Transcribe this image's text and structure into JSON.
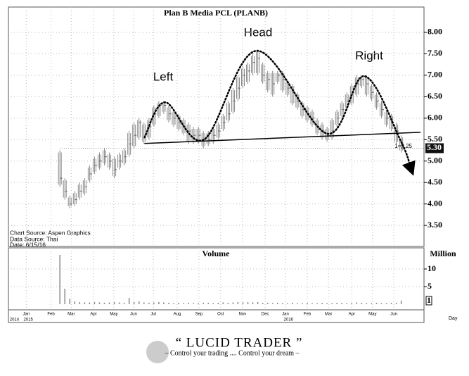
{
  "chart_data": {
    "type": "ohlc",
    "title": "Plan B Media PCL (PLANB)",
    "volume_title": "Volume",
    "volume_unit": "Million",
    "annotations": [
      "Left",
      "Head",
      "Right"
    ],
    "notes": [
      "Chart Source: Aspen Graphics",
      "Data Source: Thai",
      "Date: 6/15/16"
    ],
    "price_note": "1=5.25",
    "x_unit": "Day",
    "color": "#8a8a8a",
    "x": [
      9,
      10,
      11,
      12,
      13,
      14,
      15,
      16,
      17,
      18,
      19,
      20,
      21,
      22,
      23,
      24,
      25,
      26,
      27,
      28,
      29,
      30,
      31,
      32,
      33,
      34,
      35,
      36,
      37,
      38,
      39,
      40,
      41,
      42,
      43,
      44,
      45,
      46,
      47,
      48,
      49,
      50,
      51,
      52,
      53,
      54,
      55,
      56,
      57,
      58,
      59,
      60,
      61,
      62,
      63,
      64,
      65,
      66,
      67,
      68,
      69,
      70,
      71,
      72,
      73,
      74,
      75,
      76,
      77,
      78
    ],
    "high": [
      5.25,
      4.6,
      4.2,
      4.3,
      4.5,
      4.6,
      4.9,
      5.1,
      5.2,
      5.3,
      5.2,
      5.1,
      5.2,
      5.3,
      5.7,
      5.9,
      6.0,
      5.9,
      6.0,
      6.3,
      6.4,
      6.4,
      6.3,
      6.2,
      6.1,
      6.0,
      5.9,
      5.8,
      5.8,
      5.7,
      5.7,
      5.8,
      5.9,
      6.1,
      6.4,
      6.7,
      7.0,
      7.2,
      7.3,
      7.5,
      7.6,
      7.3,
      7.1,
      7.1,
      7.1,
      7.1,
      6.9,
      6.8,
      6.6,
      6.4,
      6.3,
      6.2,
      6.0,
      5.9,
      5.8,
      6.0,
      6.2,
      6.4,
      6.6,
      6.8,
      7.0,
      7.0,
      7.0,
      6.8,
      6.6,
      6.4,
      6.2,
      6.1,
      5.9,
      5.6
    ],
    "low": [
      4.4,
      4.1,
      3.9,
      3.95,
      4.1,
      4.2,
      4.5,
      4.7,
      4.8,
      4.9,
      4.8,
      4.6,
      4.8,
      4.9,
      5.1,
      5.3,
      5.5,
      5.4,
      5.5,
      5.8,
      6.0,
      6.1,
      5.9,
      5.8,
      5.7,
      5.6,
      5.4,
      5.4,
      5.4,
      5.3,
      5.35,
      5.4,
      5.5,
      5.7,
      5.9,
      6.1,
      6.4,
      6.7,
      6.8,
      7.0,
      7.0,
      6.8,
      6.6,
      6.5,
      6.8,
      6.6,
      6.5,
      6.3,
      6.2,
      6.0,
      5.9,
      5.8,
      5.6,
      5.5,
      5.45,
      5.5,
      5.8,
      6.0,
      6.2,
      6.3,
      6.5,
      6.7,
      6.5,
      6.4,
      6.2,
      6.0,
      5.8,
      5.7,
      5.4,
      5.2
    ],
    "close": [
      4.6,
      4.3,
      4.0,
      4.1,
      4.3,
      4.4,
      4.7,
      4.9,
      5.0,
      5.1,
      5.0,
      4.8,
      5.0,
      5.1,
      5.4,
      5.6,
      5.9,
      5.6,
      5.8,
      6.1,
      6.3,
      6.3,
      6.1,
      6.0,
      5.9,
      5.8,
      5.7,
      5.6,
      5.6,
      5.5,
      5.5,
      5.6,
      5.7,
      5.9,
      6.1,
      6.4,
      6.7,
      7.0,
      7.1,
      7.3,
      7.4,
      7.0,
      6.9,
      6.8,
      7.0,
      6.9,
      6.7,
      6.6,
      6.4,
      6.2,
      6.1,
      6.0,
      5.8,
      5.7,
      5.6,
      5.7,
      6.0,
      6.2,
      6.4,
      6.6,
      6.8,
      6.9,
      6.8,
      6.6,
      6.4,
      6.2,
      6.0,
      5.9,
      5.7,
      5.3
    ],
    "volume": [
      14,
      4.4,
      1.5,
      0.8,
      0.6,
      0.5,
      0.5,
      0.6,
      0.5,
      0.4,
      0.5,
      0.6,
      0.5,
      0.4,
      1.8,
      0.6,
      0.8,
      0.5,
      0.4,
      0.5,
      0.6,
      0.5,
      0.4,
      0.3,
      0.4,
      0.3,
      0.4,
      0.3,
      0.3,
      0.4,
      0.4,
      0.3,
      0.4,
      0.5,
      0.4,
      0.5,
      0.6,
      0.5,
      0.6,
      0.5,
      0.6,
      0.4,
      0.4,
      0.3,
      0.4,
      0.3,
      0.3,
      0.4,
      0.3,
      0.3,
      0.4,
      0.3,
      0.3,
      0.4,
      0.3,
      0.3,
      0.4,
      0.4,
      0.3,
      0.4,
      0.5,
      0.4,
      0.3,
      0.3,
      0.4,
      0.3,
      0.3,
      0.4,
      0.4,
      1
    ],
    "last_price": {
      "value": 5.3,
      "label": "5.30"
    },
    "last_volume": 1,
    "neckline": {
      "x": [
        26.1,
        81.9
      ],
      "y": [
        5.41,
        5.67
      ]
    },
    "pattern_path": {
      "x": [
        26.1,
        30.3,
        38.1,
        48.8,
        63.0,
        70.5,
        77.9,
        80.0
      ],
      "y": [
        5.55,
        6.37,
        5.5,
        7.57,
        5.64,
        6.98,
        5.47,
        4.81
      ]
    },
    "xlim": [
      -1.4,
      82.6
    ],
    "ylim": [
      3.01,
      8.59
    ],
    "yticks": [
      {
        "value": 3.5,
        "label": "3.50"
      },
      {
        "value": 4,
        "label": "4.00"
      },
      {
        "value": 4.5,
        "label": "4.50"
      },
      {
        "value": 5,
        "label": "5.00"
      },
      {
        "value": 5.5,
        "label": "5.50"
      },
      {
        "value": 6,
        "label": "6.00"
      },
      {
        "value": 6.5,
        "label": "6.50"
      },
      {
        "value": 7,
        "label": "7.00"
      },
      {
        "value": 7.5,
        "label": "7.50"
      },
      {
        "value": 8,
        "label": "8.00"
      }
    ],
    "volume_ylim": [
      -1.6,
      16
    ],
    "volume_yticks": [
      5,
      10
    ],
    "xticks": [
      {
        "value": 2.2,
        "label": "Jan"
      },
      {
        "value": 7.2,
        "label": "Feb"
      },
      {
        "value": 11.3,
        "label": "Mar"
      },
      {
        "value": 15.8,
        "label": "Apr"
      },
      {
        "value": 19.9,
        "label": "May"
      },
      {
        "value": 23.9,
        "label": "Jun"
      },
      {
        "value": 27.9,
        "label": "Jul"
      },
      {
        "value": 32.7,
        "label": "Aug"
      },
      {
        "value": 37.1,
        "label": "Sep"
      },
      {
        "value": 41.5,
        "label": "Oct"
      },
      {
        "value": 45.9,
        "label": "Nov"
      },
      {
        "value": 50.5,
        "label": "Dec"
      },
      {
        "value": 54.6,
        "label": "Jan"
      },
      {
        "value": 59.0,
        "label": "Feb"
      },
      {
        "value": 63.3,
        "label": "Mar"
      },
      {
        "value": 68.0,
        "label": "Apr"
      },
      {
        "value": 72.2,
        "label": "May"
      },
      {
        "value": 76.5,
        "label": "Jun"
      }
    ],
    "year_ticks": [
      {
        "value": -0.2,
        "label": "2014"
      },
      {
        "value": 2.6,
        "label": "2015"
      },
      {
        "value": 55.2,
        "label": "2016"
      }
    ],
    "grid": true
  },
  "footer": {
    "brand": "“ LUCID TRADER ”",
    "tagline": "– Control your trading .... Control your dream –"
  }
}
